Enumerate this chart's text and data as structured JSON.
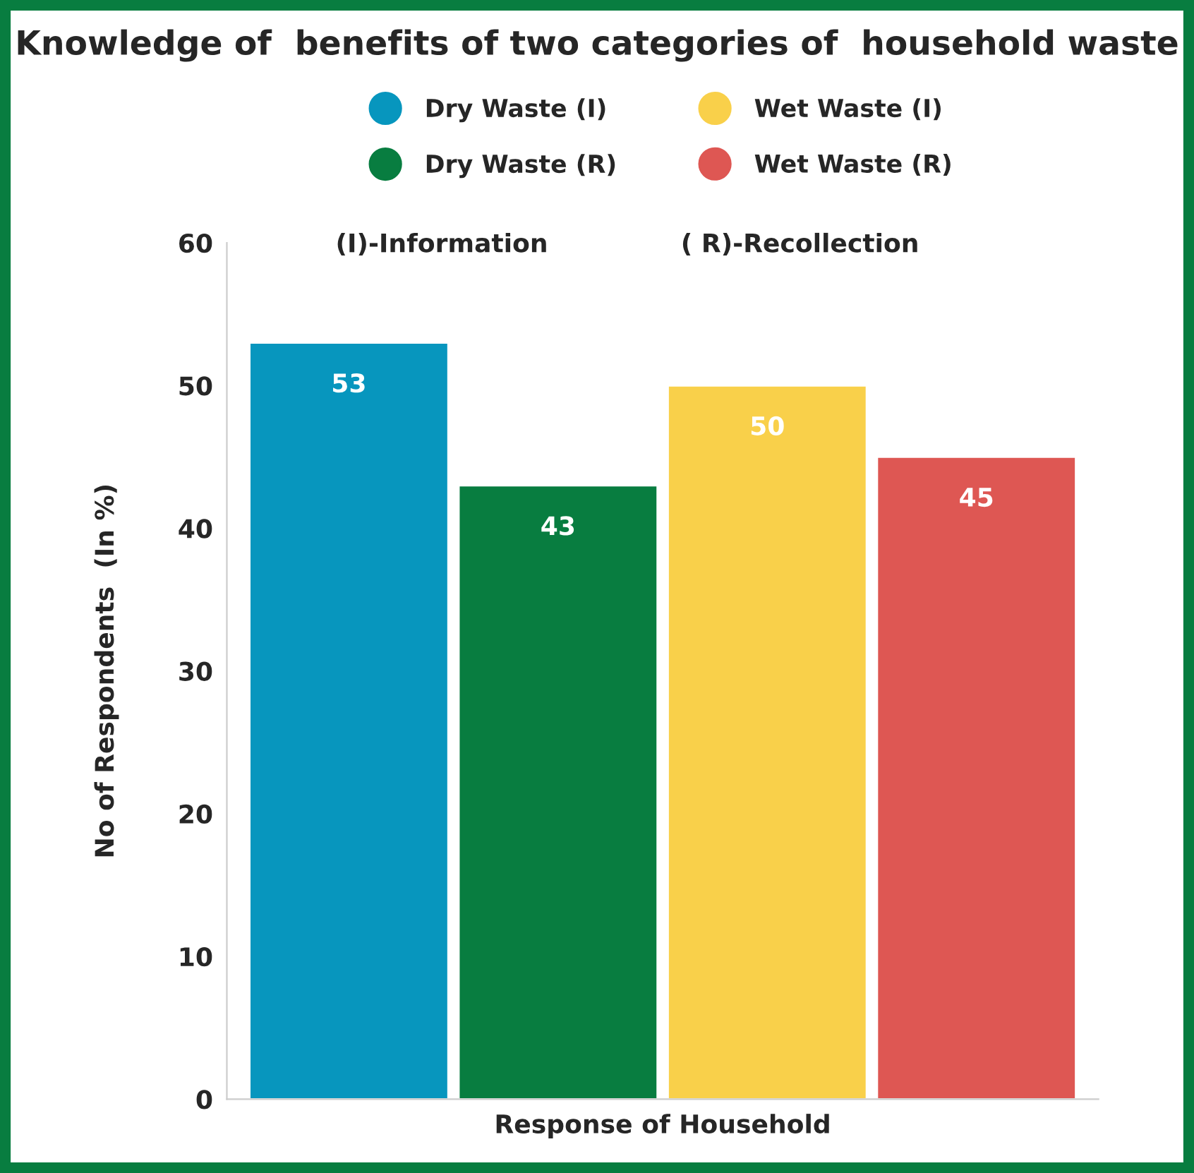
{
  "chart_data": {
    "type": "bar",
    "title": "Knowledge of  benefits of two categories of  household waste",
    "xlabel": "Response of Household",
    "ylabel": "No of Respondents  (In %)",
    "categories": [
      null
    ],
    "series": [
      {
        "name": "Dry Waste (I)",
        "color": "#0796be",
        "values": [
          53
        ]
      },
      {
        "name": "Dry Waste (R)",
        "color": "#087d40",
        "values": [
          43
        ]
      },
      {
        "name": "Wet Waste (I)",
        "color": "#f9d04a",
        "values": [
          50
        ]
      },
      {
        "name": "Wet Waste (R)",
        "color": "#de5753",
        "values": [
          45
        ]
      }
    ],
    "annotations": [
      "(I)-Information",
      "( R)-Recollection"
    ],
    "ylim": [
      0,
      60
    ],
    "yticks": [
      0,
      10,
      20,
      30,
      40,
      50,
      60
    ],
    "data_labels": true,
    "legend": "top",
    "grid": false
  }
}
